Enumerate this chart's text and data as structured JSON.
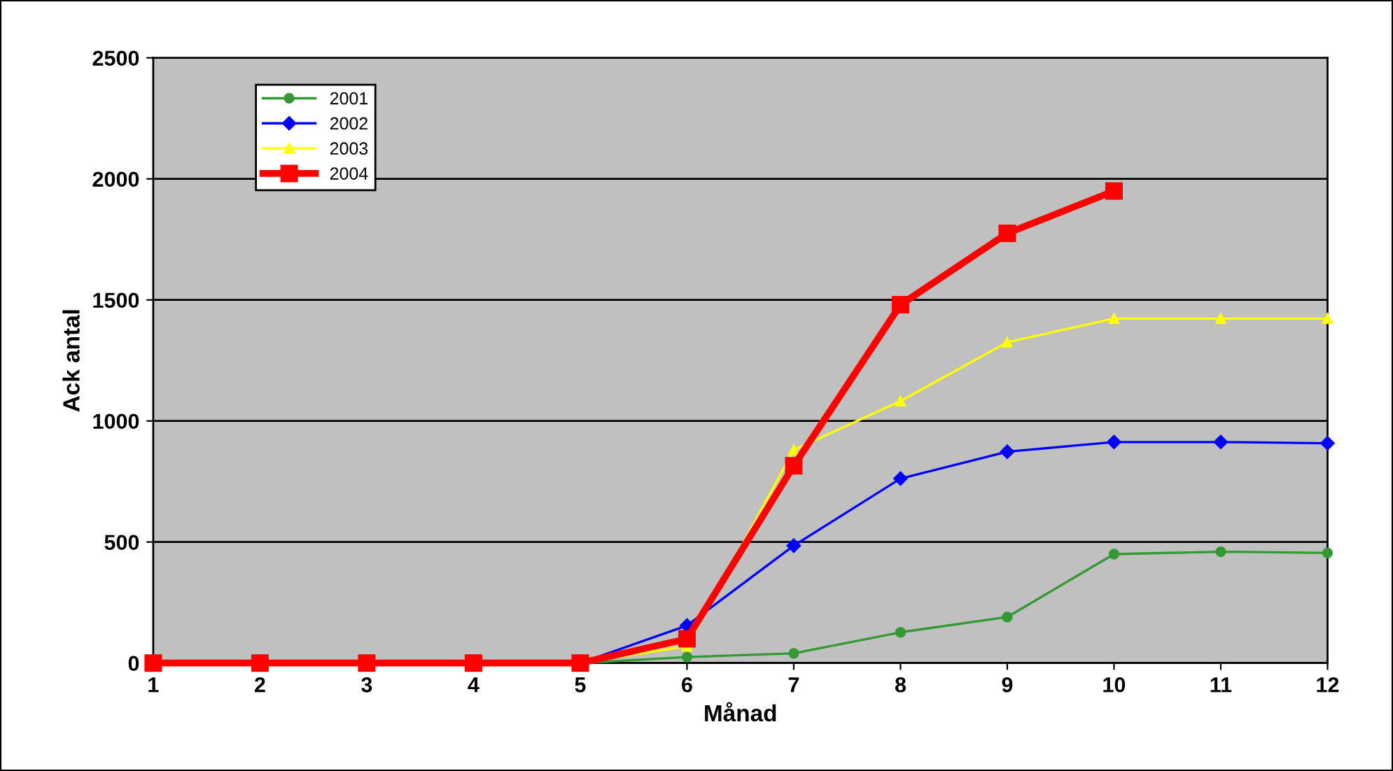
{
  "chart_data": {
    "type": "line",
    "xlabel": "Månad",
    "ylabel": "Ack antal",
    "x": [
      1,
      2,
      3,
      4,
      5,
      6,
      7,
      8,
      9,
      10,
      11,
      12
    ],
    "xlim": [
      1,
      12
    ],
    "xticks": [
      1,
      2,
      3,
      4,
      5,
      6,
      7,
      8,
      9,
      10,
      11,
      12
    ],
    "ylim": [
      0,
      2500
    ],
    "yticks": [
      0,
      500,
      1000,
      1500,
      2000,
      2500
    ],
    "grid": "y",
    "legend": "top left",
    "series": [
      {
        "name": "2001",
        "color": "#339933",
        "marker": "circle",
        "values": [
          null,
          null,
          null,
          0,
          0,
          25,
          40,
          127,
          190,
          450,
          460,
          455
        ]
      },
      {
        "name": "2002",
        "color": "#0000ff",
        "marker": "diamond",
        "values": [
          null,
          null,
          null,
          0,
          0,
          155,
          485,
          762,
          873,
          913,
          913,
          908
        ]
      },
      {
        "name": "2003",
        "color": "#ffff00",
        "marker": "triangle",
        "values": [
          null,
          null,
          null,
          0,
          0,
          70,
          880,
          1082,
          1325,
          1423,
          1423,
          1423
        ]
      },
      {
        "name": "2004",
        "color": "#ff0000",
        "marker": "square",
        "values": [
          0,
          0,
          0,
          0,
          0,
          100,
          815,
          1480,
          1775,
          1950,
          null,
          null
        ]
      }
    ]
  }
}
